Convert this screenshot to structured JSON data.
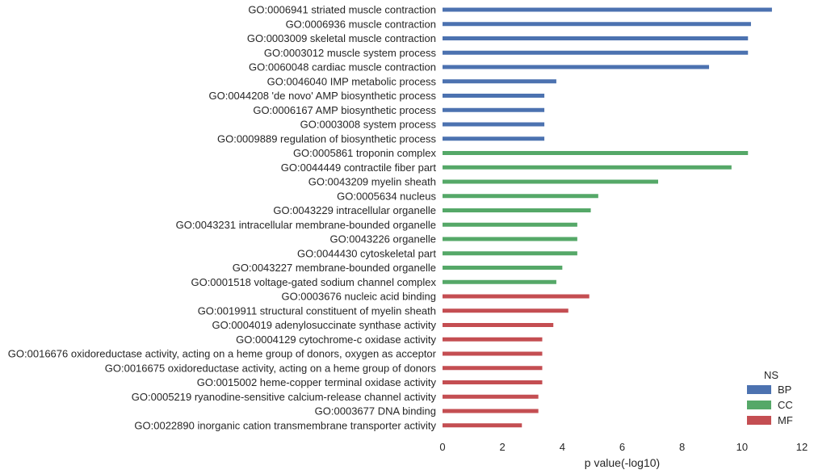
{
  "chart_data": {
    "type": "bar",
    "orientation": "horizontal",
    "xlabel": "p value(-log10)",
    "xlim": [
      0,
      12
    ],
    "xticks": [
      0,
      2,
      4,
      6,
      8,
      10,
      12
    ],
    "grid": false,
    "legend": {
      "title": "NS",
      "position": "bottom-right",
      "entries": [
        {
          "name": "BP",
          "color": "#4c72b0"
        },
        {
          "name": "CC",
          "color": "#55a868"
        },
        {
          "name": "MF",
          "color": "#c44e52"
        }
      ]
    },
    "categories": [
      "GO:0006941 striated muscle contraction",
      "GO:0006936 muscle contraction",
      "GO:0003009 skeletal muscle contraction",
      "GO:0003012 muscle system process",
      "GO:0060048 cardiac muscle contraction",
      "GO:0046040 IMP metabolic process",
      "GO:0044208 'de novo' AMP biosynthetic process",
      "GO:0006167 AMP biosynthetic process",
      "GO:0003008 system process",
      "GO:0009889 regulation of biosynthetic process",
      "GO:0005861 troponin complex",
      "GO:0044449 contractile fiber part",
      "GO:0043209 myelin sheath",
      "GO:0005634 nucleus",
      "GO:0043229 intracellular organelle",
      "GO:0043231 intracellular membrane-bounded organelle",
      "GO:0043226 organelle",
      "GO:0044430 cytoskeletal part",
      "GO:0043227 membrane-bounded organelle",
      "GO:0001518 voltage-gated sodium channel complex",
      "GO:0003676 nucleic acid binding",
      "GO:0019911 structural constituent of myelin sheath",
      "GO:0004019 adenylosuccinate synthase activity",
      "GO:0004129 cytochrome-c oxidase activity",
      "GO:0016676 oxidoreductase activity, acting on a heme group of donors, oxygen as acceptor",
      "GO:0016675 oxidoreductase activity, acting on a heme group of donors",
      "GO:0015002 heme-copper terminal oxidase activity",
      "GO:0005219 ryanodine-sensitive calcium-release channel activity",
      "GO:0003677 DNA binding",
      "GO:0022890 inorganic cation transmembrane transporter activity"
    ],
    "values": [
      11.0,
      10.3,
      10.2,
      10.2,
      8.9,
      3.8,
      3.4,
      3.4,
      3.4,
      3.4,
      10.2,
      9.65,
      7.2,
      5.2,
      4.95,
      4.5,
      4.5,
      4.5,
      4.0,
      3.8,
      4.9,
      4.2,
      3.7,
      3.33,
      3.33,
      3.33,
      3.33,
      3.2,
      3.2,
      2.65
    ],
    "groups": [
      "BP",
      "BP",
      "BP",
      "BP",
      "BP",
      "BP",
      "BP",
      "BP",
      "BP",
      "BP",
      "CC",
      "CC",
      "CC",
      "CC",
      "CC",
      "CC",
      "CC",
      "CC",
      "CC",
      "CC",
      "MF",
      "MF",
      "MF",
      "MF",
      "MF",
      "MF",
      "MF",
      "MF",
      "MF",
      "MF"
    ]
  }
}
